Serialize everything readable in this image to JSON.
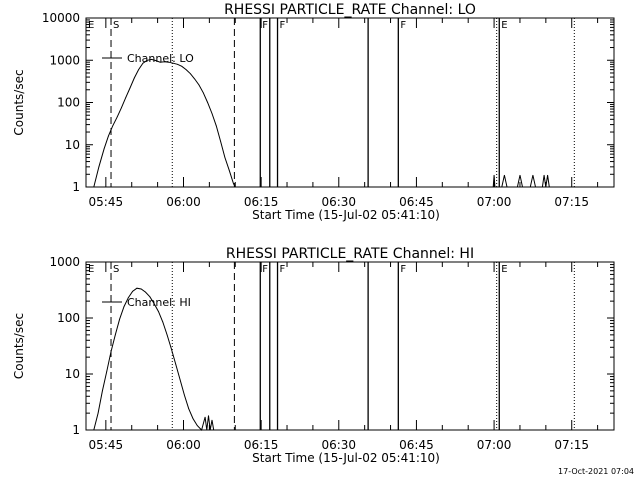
{
  "footer_timestamp": "17-Oct-2021 07:04",
  "chart_data": [
    {
      "type": "line",
      "title": "RHESSI PARTICLE_RATE Channel: LO",
      "xlabel": "Start Time (15-Jul-02 05:41:10)",
      "ylabel": "Counts/sec",
      "legend": "Channel: LO",
      "legend_position": "top-left",
      "y_scale": "log",
      "ylim": [
        1,
        10000
      ],
      "yticks": [
        1,
        10,
        100,
        1000,
        10000
      ],
      "yticklabels": [
        "1",
        "10",
        "100",
        "1000",
        "10000"
      ],
      "xlim": [
        "05:41:10",
        "07:23:10"
      ],
      "xticks": [
        "05:45",
        "06:00",
        "06:15",
        "06:30",
        "06:45",
        "07:00",
        "07:15"
      ],
      "dashed_lines": [
        "05:46:00",
        "06:09:50"
      ],
      "dotted_lines": [
        "05:57:50",
        "07:00:30",
        "07:15:30"
      ],
      "solid_lines": [
        "06:14:50",
        "06:16:40",
        "06:18:10",
        "06:35:40",
        "06:41:30",
        "07:01:00"
      ],
      "markers": [
        {
          "label": "E",
          "x": "05:41:10"
        },
        {
          "label": "S",
          "x": "05:46:00"
        },
        {
          "label": "F",
          "x": "06:14:50"
        },
        {
          "label": "F",
          "x": "06:18:10"
        },
        {
          "label": "F",
          "x": "06:41:30"
        },
        {
          "label": "E",
          "x": "07:01:00"
        }
      ],
      "series": [
        {
          "x": [
            "05:42:40",
            "05:43:40",
            "05:44:40",
            "05:45:30",
            "05:46:20",
            "05:47:10",
            "05:48:00",
            "05:48:50",
            "05:49:40",
            "05:50:30",
            "05:51:20",
            "05:52:10",
            "05:53:00",
            "05:53:50",
            "05:54:40",
            "05:55:30",
            "05:56:20",
            "05:57:10",
            "05:58:00",
            "05:58:50",
            "05:59:40",
            "06:00:30",
            "06:01:20",
            "06:02:10",
            "06:03:00",
            "06:03:50",
            "06:04:40",
            "06:05:30",
            "06:06:20",
            "06:07:10",
            "06:08:00",
            "06:08:50",
            "06:09:40",
            "06:10:00"
          ],
          "y": [
            1,
            3,
            8,
            16,
            28,
            45,
            75,
            130,
            220,
            380,
            600,
            850,
            1000,
            1050,
            980,
            900,
            920,
            900,
            850,
            800,
            720,
            600,
            480,
            360,
            260,
            170,
            100,
            55,
            28,
            12,
            5,
            2.5,
            1.2,
            1
          ]
        },
        {
          "x": [
            "06:59:50",
            "07:00:00",
            "07:00:10",
            "07:01:30",
            "07:02:00",
            "07:02:30",
            "07:04:30",
            "07:05:00",
            "07:05:30",
            "07:07:00",
            "07:07:30",
            "07:08:00",
            "07:09:20",
            "07:09:40",
            "07:10:00",
            "07:10:20",
            "07:10:40"
          ],
          "y": [
            1,
            1.9,
            1,
            1,
            1.9,
            1,
            1,
            1.9,
            1,
            1,
            1.9,
            1,
            1,
            1.9,
            1,
            1.9,
            1
          ]
        }
      ]
    },
    {
      "type": "line",
      "title": "RHESSI PARTICLE_RATE Channel: HI",
      "xlabel": "Start Time (15-Jul-02 05:41:10)",
      "ylabel": "Counts/sec",
      "legend": "Channel: HI",
      "legend_position": "top-left",
      "y_scale": "log",
      "ylim": [
        1,
        1000
      ],
      "yticks": [
        1,
        10,
        100,
        1000
      ],
      "yticklabels": [
        "1",
        "10",
        "100",
        "1000"
      ],
      "xlim": [
        "05:41:10",
        "07:23:10"
      ],
      "xticks": [
        "05:45",
        "06:00",
        "06:15",
        "06:30",
        "06:45",
        "07:00",
        "07:15"
      ],
      "dashed_lines": [
        "05:46:00",
        "06:09:50"
      ],
      "dotted_lines": [
        "05:57:50",
        "07:00:30",
        "07:15:30"
      ],
      "solid_lines": [
        "06:14:50",
        "06:16:40",
        "06:18:10",
        "06:35:40",
        "06:41:30",
        "07:01:00"
      ],
      "markers": [
        {
          "label": "E",
          "x": "05:41:10"
        },
        {
          "label": "S",
          "x": "05:46:00"
        },
        {
          "label": "F",
          "x": "06:14:50"
        },
        {
          "label": "F",
          "x": "06:18:10"
        },
        {
          "label": "F",
          "x": "06:41:30"
        },
        {
          "label": "E",
          "x": "07:01:00"
        }
      ],
      "series": [
        {
          "x": [
            "05:42:40",
            "05:43:30",
            "05:44:20",
            "05:45:10",
            "05:46:00",
            "05:46:50",
            "05:47:40",
            "05:48:30",
            "05:49:20",
            "05:50:10",
            "05:51:00",
            "05:51:50",
            "05:52:40",
            "05:53:30",
            "05:54:20",
            "05:55:10",
            "05:56:00",
            "05:56:50",
            "05:57:40",
            "05:58:30",
            "05:59:20",
            "06:00:10",
            "06:01:00",
            "06:01:50",
            "06:02:40",
            "06:03:30",
            "06:04:10",
            "06:04:30",
            "06:04:50",
            "06:05:10",
            "06:05:30",
            "06:05:50"
          ],
          "y": [
            1,
            2,
            5,
            11,
            25,
            50,
            95,
            160,
            230,
            300,
            340,
            330,
            290,
            240,
            180,
            130,
            85,
            50,
            28,
            15,
            8,
            4.2,
            2.4,
            1.6,
            1.2,
            1,
            1.7,
            1,
            1.8,
            1,
            1.5,
            1
          ]
        }
      ]
    }
  ]
}
